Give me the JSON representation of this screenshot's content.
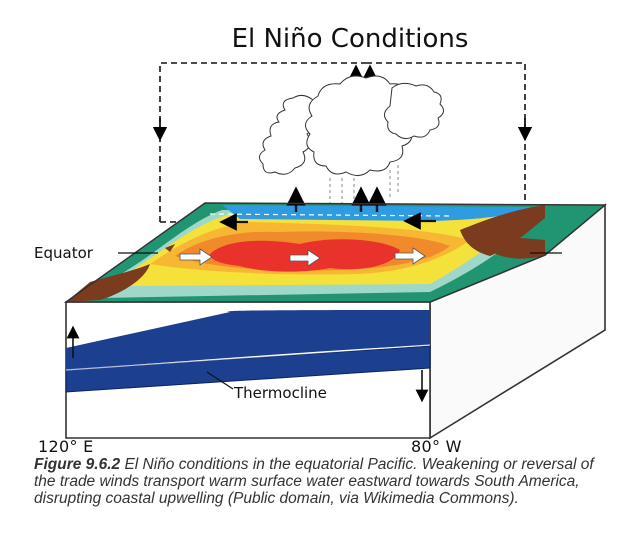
{
  "title": "El Niño Conditions",
  "labels": {
    "equator": "Equator",
    "thermocline": "Thermocline",
    "lon_west": "120° E",
    "lon_east": "80° W"
  },
  "caption": {
    "figure_label": "Figure 9.6.2",
    "text": " El Niño conditions in the equatorial Pacific. Weakening or reversal of the trade winds transport warm surface water eastward towards South America, disrupting coastal upwelling (Public domain, via Wikimedia Commons)."
  },
  "colors": {
    "deep_ocean": "#1d3f8f",
    "warm_core": "#e8322b",
    "warm": "#f08a2a",
    "mild": "#f7b733",
    "yellow": "#f4e23a",
    "teal": "#9fd8c8",
    "green": "#219472",
    "blue": "#2f9be0",
    "land": "#7a3b1f"
  }
}
